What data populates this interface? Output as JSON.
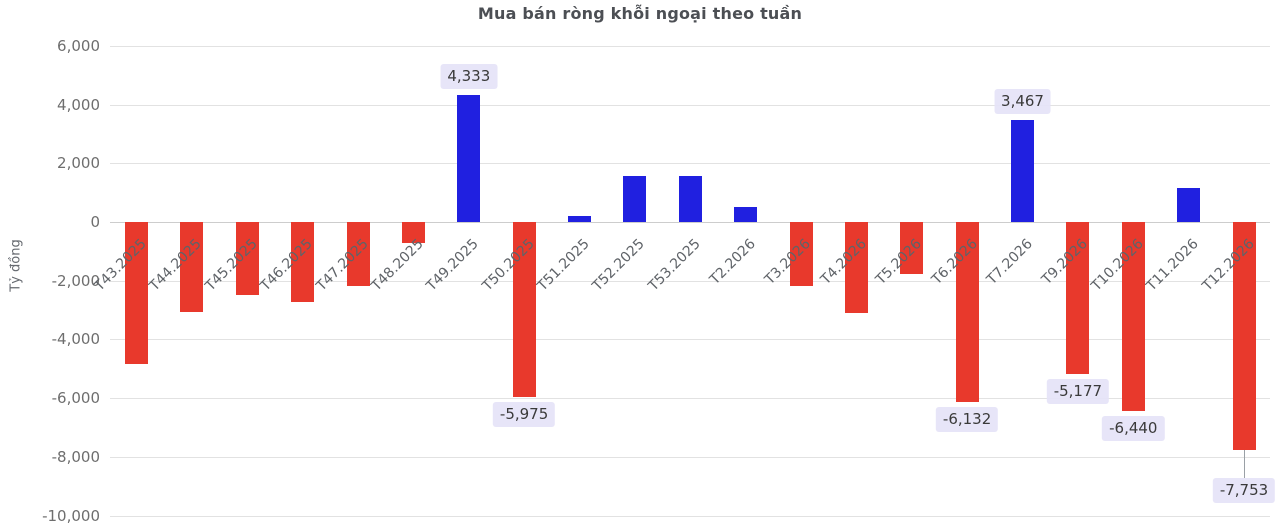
{
  "chart_data": {
    "type": "bar",
    "title": "Mua bán ròng khỗi ngoại theo tuần",
    "xlabel": "",
    "ylabel": "Tỷ đồng",
    "ylim": [
      -10000,
      6000
    ],
    "grid": true,
    "legend": false,
    "yticks": [
      6000,
      4000,
      2000,
      0,
      -2000,
      -4000,
      -6000,
      -8000,
      -10000
    ],
    "ytick_labels": [
      "6,000",
      "4,000",
      "2,000",
      "0",
      "-2,000",
      "-4,000",
      "-6,000",
      "-8,000",
      "-10,000"
    ],
    "categories": [
      "T43.2025",
      "T44.2025",
      "T45.2025",
      "T46.2025",
      "T47.2025",
      "T48.2025",
      "T49.2025",
      "T50.2025",
      "T51.2025",
      "T52.2025",
      "T53.2025",
      "T2.2026",
      "T3.2026",
      "T4.2026",
      "T5.2026",
      "T6.2026",
      "T7.2026",
      "T9.2026",
      "T10.2026",
      "T11.2026",
      "T12.2026"
    ],
    "values": [
      -4850,
      -3080,
      -2480,
      -2720,
      -2180,
      -700,
      4333,
      -5975,
      220,
      1560,
      1560,
      500,
      -2180,
      -3100,
      -1780,
      -6132,
      3467,
      -5177,
      -6440,
      1150,
      -7753
    ],
    "bar_labels": [
      "",
      "",
      "",
      "",
      "",
      "",
      "4,333",
      "-5,975",
      "",
      "",
      "",
      "",
      "",
      "",
      "",
      "-6,132",
      "3,467",
      "-5,177",
      "-6,440",
      "",
      "-7,753"
    ],
    "label_connectors": [
      false,
      false,
      false,
      false,
      false,
      false,
      false,
      false,
      false,
      false,
      false,
      false,
      false,
      false,
      false,
      false,
      false,
      false,
      false,
      false,
      true
    ],
    "colors": {
      "positive": "#2020e0",
      "negative": "#e8392c",
      "grid": "#e2e2e2",
      "label_bg": "#e5e3f8",
      "label_text": "#3a3a3a",
      "tick_text": "#6e6e6e",
      "title_text": "#4c4f54"
    }
  }
}
